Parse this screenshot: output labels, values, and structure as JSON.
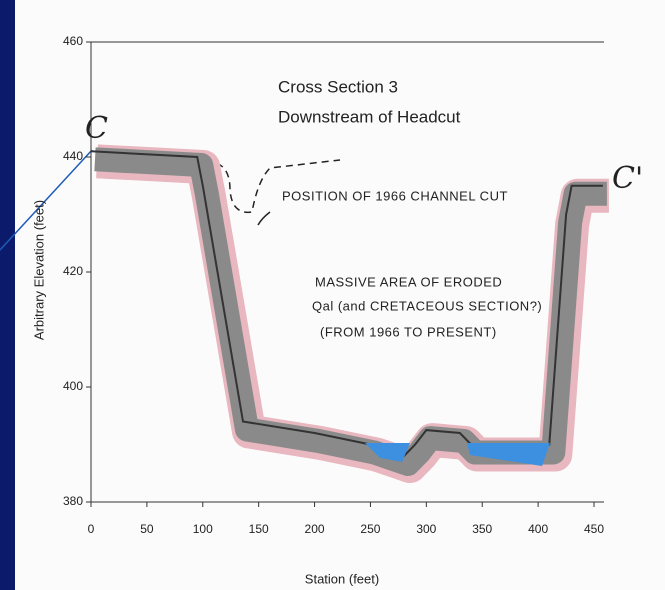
{
  "chart_data": {
    "type": "line",
    "title": [
      "Cross Section 3",
      "Downstream of Headcut"
    ],
    "xlabel": "Station (feet)",
    "ylabel": "Arbitrary Elevation (feet)",
    "annotations": [
      "C",
      "C'",
      "POSITION OF 1966 CHANNEL CUT",
      "MASSIVE AREA OF ERODED",
      "Qal (and CRETACEOUS SECTION?)",
      "(FROM 1966 TO PRESENT)"
    ],
    "x": [
      0,
      95,
      100,
      136,
      200,
      250,
      280,
      290,
      300,
      330,
      340,
      400,
      410,
      425,
      430,
      458
    ],
    "values": [
      441,
      440,
      435,
      394,
      392,
      390,
      388,
      390,
      392.5,
      392,
      390,
      390,
      390,
      430,
      435,
      435
    ],
    "color": "#333333",
    "xlim": [
      0,
      450
    ],
    "ylim": [
      380,
      460
    ],
    "xticks": [
      0,
      50,
      100,
      150,
      200,
      250,
      300,
      350,
      400,
      450
    ],
    "yticks": [
      380,
      400,
      420,
      440,
      460
    ]
  }
}
